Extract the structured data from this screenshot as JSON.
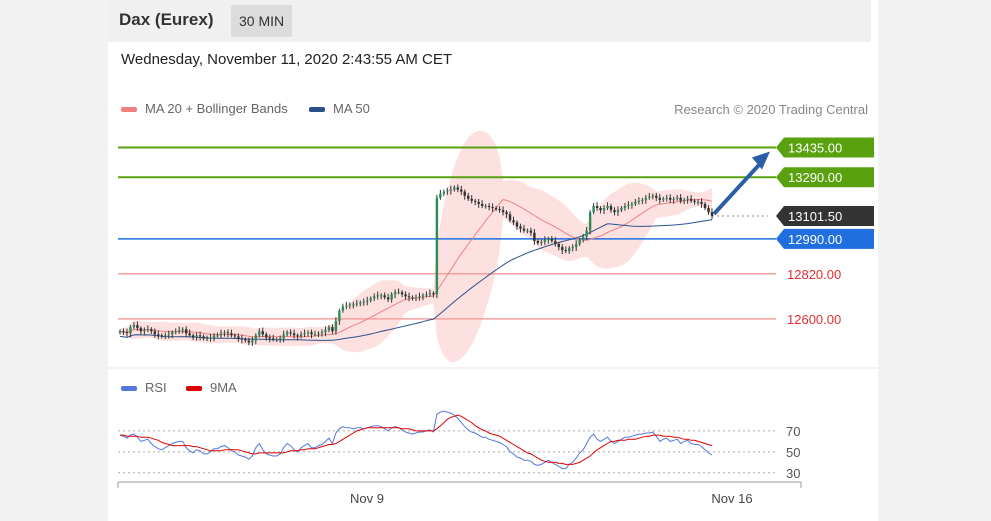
{
  "header": {
    "title": "Dax (Eurex)",
    "timeframe": "30 MIN"
  },
  "datetime": "Wednesday, November 11, 2020 2:43:55 AM CET",
  "legend": {
    "items": [
      {
        "label": "MA 20 + Bollinger Bands",
        "color": "#f08080"
      },
      {
        "label": "MA 50",
        "color": "#2a4f8c"
      }
    ],
    "copyright": "Research © 2020 Trading Central"
  },
  "rsi_legend": {
    "items": [
      {
        "label": "RSI",
        "color": "#5577dd"
      },
      {
        "label": "9MA",
        "color": "#e00000"
      }
    ]
  },
  "colors": {
    "resistance": "#5aa10f",
    "pivot": "#1f6fe0",
    "support": "#e03030",
    "support_line": "#f5a0a0",
    "current": "#333333",
    "arrow": "#2a5ea8"
  },
  "chart_data": [
    {
      "type": "candlestick",
      "ylim": [
        12400,
        13520
      ],
      "levels": [
        {
          "value": 13435.0,
          "label": "13435.00",
          "kind": "resistance"
        },
        {
          "value": 13290.0,
          "label": "13290.00",
          "kind": "resistance"
        },
        {
          "value": 13101.5,
          "label": "13101.50",
          "kind": "current"
        },
        {
          "value": 12990.0,
          "label": "12990.00",
          "kind": "pivot"
        },
        {
          "value": 12820.0,
          "label": "12820.00",
          "kind": "support"
        },
        {
          "value": 12600.0,
          "label": "12600.00",
          "kind": "support"
        }
      ],
      "close": [
        12540,
        12535,
        12530,
        12560,
        12570,
        12555,
        12540,
        12545,
        12550,
        12540,
        12525,
        12520,
        12515,
        12520,
        12525,
        12535,
        12540,
        12545,
        12550,
        12530,
        12520,
        12510,
        12520,
        12515,
        12505,
        12505,
        12510,
        12520,
        12520,
        12530,
        12535,
        12530,
        12520,
        12515,
        12505,
        12500,
        12495,
        12485,
        12495,
        12520,
        12540,
        12525,
        12510,
        12505,
        12500,
        12500,
        12505,
        12525,
        12535,
        12530,
        12520,
        12515,
        12525,
        12530,
        12535,
        12525,
        12525,
        12530,
        12535,
        12545,
        12560,
        12540,
        12590,
        12640,
        12660,
        12665,
        12670,
        12670,
        12675,
        12680,
        12685,
        12690,
        12700,
        12710,
        12715,
        12715,
        12705,
        12695,
        12720,
        12730,
        12730,
        12720,
        12710,
        12705,
        12700,
        12705,
        12710,
        12715,
        12720,
        12725,
        12720,
        13190,
        13210,
        13220,
        13225,
        13230,
        13240,
        13230,
        13220,
        13200,
        13185,
        13175,
        13170,
        13160,
        13150,
        13150,
        13145,
        13140,
        13135,
        13130,
        13120,
        13110,
        13080,
        13070,
        13050,
        13040,
        13030,
        13030,
        13020,
        12980,
        12970,
        12975,
        12985,
        12990,
        12980,
        12965,
        12950,
        12935,
        12930,
        12945,
        12950,
        12965,
        12985,
        13000,
        13030,
        13120,
        13150,
        13140,
        13130,
        13140,
        13150,
        13130,
        13120,
        13130,
        13140,
        13150,
        13155,
        13160,
        13170,
        13175,
        13180,
        13190,
        13195,
        13200,
        13190,
        13180,
        13185,
        13190,
        13180,
        13185,
        13190,
        13175,
        13180,
        13185,
        13175,
        13170,
        13170,
        13160,
        13140,
        13120,
        13101.5
      ]
    },
    {
      "type": "line",
      "title": "RSI",
      "ylabel": "",
      "yticks": [
        70,
        50,
        30
      ],
      "xticks": [
        "Nov 9",
        "Nov 16"
      ],
      "series": [
        {
          "name": "RSI",
          "values": [
            66,
            65,
            63,
            66,
            67,
            64,
            60,
            61,
            62,
            58,
            55,
            53,
            52,
            54,
            56,
            58,
            59,
            60,
            60,
            54,
            51,
            49,
            52,
            51,
            48,
            48,
            50,
            53,
            53,
            55,
            56,
            54,
            51,
            50,
            47,
            46,
            45,
            43,
            46,
            54,
            58,
            52,
            48,
            47,
            46,
            46,
            48,
            54,
            58,
            56,
            52,
            50,
            54,
            56,
            58,
            54,
            54,
            56,
            57,
            60,
            63,
            58,
            68,
            72,
            74,
            73,
            73,
            72,
            73,
            73,
            72,
            73,
            74,
            75,
            75,
            74,
            72,
            70,
            73,
            74,
            73,
            71,
            69,
            68,
            67,
            68,
            69,
            69,
            70,
            71,
            69,
            86,
            88,
            89,
            88,
            87,
            85,
            82,
            78,
            74,
            71,
            69,
            68,
            66,
            64,
            64,
            62,
            61,
            60,
            59,
            57,
            55,
            50,
            48,
            45,
            44,
            42,
            42,
            41,
            38,
            37,
            38,
            40,
            42,
            40,
            38,
            36,
            34,
            34,
            38,
            40,
            44,
            49,
            52,
            58,
            64,
            67,
            62,
            60,
            62,
            64,
            60,
            58,
            60,
            62,
            64,
            64,
            65,
            66,
            67,
            67,
            68,
            68,
            69,
            65,
            60,
            62,
            63,
            60,
            61,
            62,
            58,
            60,
            61,
            58,
            57,
            57,
            55,
            52,
            49,
            47
          ]
        },
        {
          "name": "9MA",
          "values": [
            66,
            66,
            65,
            65,
            65,
            65,
            64,
            64,
            64,
            63,
            62,
            61,
            59,
            58,
            57,
            56,
            56,
            56,
            56,
            56,
            56,
            55,
            55,
            54,
            53,
            52,
            51,
            51,
            51,
            51,
            52,
            52,
            52,
            52,
            52,
            51,
            50,
            49,
            48,
            48,
            49,
            49,
            49,
            49,
            49,
            49,
            49,
            49,
            50,
            51,
            51,
            51,
            52,
            52,
            53,
            53,
            53,
            54,
            55,
            56,
            57,
            57,
            58,
            60,
            62,
            64,
            66,
            68,
            70,
            71,
            72,
            73,
            73,
            73,
            73,
            73,
            73,
            73,
            73,
            73,
            73,
            72,
            72,
            72,
            71,
            70,
            70,
            70,
            70,
            70,
            70,
            72,
            75,
            78,
            81,
            83,
            84,
            85,
            84,
            82,
            80,
            78,
            75,
            73,
            71,
            70,
            68,
            67,
            66,
            65,
            63,
            61,
            59,
            57,
            55,
            53,
            51,
            49,
            48,
            46,
            44,
            42,
            41,
            40,
            40,
            40,
            39,
            39,
            38,
            38,
            38,
            39,
            40,
            42,
            44,
            46,
            49,
            52,
            54,
            56,
            58,
            60,
            60,
            61,
            61,
            61,
            62,
            62,
            62,
            63,
            64,
            65,
            65,
            66,
            66,
            66,
            65,
            65,
            65,
            64,
            64,
            63,
            62,
            62,
            61,
            61,
            60,
            59,
            58,
            57,
            56
          ]
        }
      ]
    }
  ]
}
